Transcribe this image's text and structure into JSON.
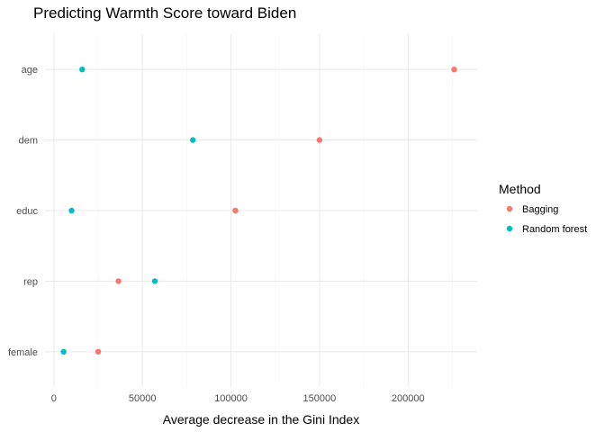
{
  "chart_data": {
    "type": "scatter",
    "title": "Predicting Warmth Score toward Biden",
    "xlabel": "Average decrease in the Gini Index",
    "ylabel": "",
    "categories": [
      "age",
      "dem",
      "educ",
      "rep",
      "female"
    ],
    "xlim": [
      -5000,
      239000
    ],
    "xticks": [
      0,
      50000,
      100000,
      150000,
      200000
    ],
    "xtick_labels": [
      "0",
      "50000",
      "100000",
      "150000",
      "200000"
    ],
    "grid": true,
    "legend": {
      "title": "Method",
      "position": "right"
    },
    "series": [
      {
        "name": "Bagging",
        "color": "#F8766D",
        "values": [
          226000,
          150000,
          102500,
          36500,
          25000
        ]
      },
      {
        "name": "Random forest",
        "color": "#00BFC4",
        "values": [
          16000,
          78500,
          10000,
          57000,
          5500
        ]
      }
    ]
  }
}
